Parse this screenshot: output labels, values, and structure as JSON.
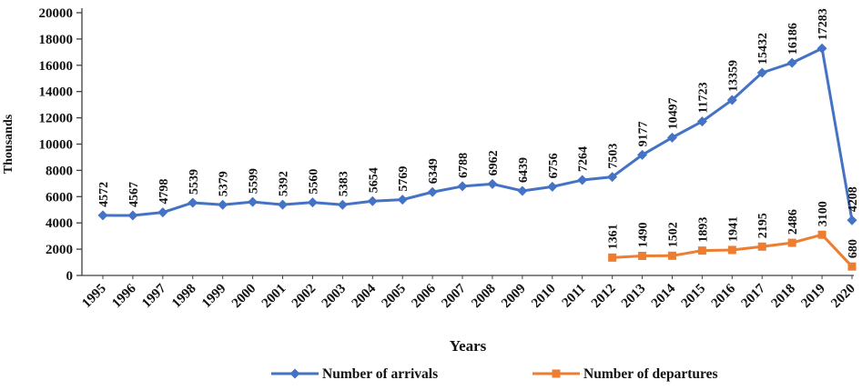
{
  "chart_data": {
    "type": "line",
    "title": "",
    "xlabel": "Years",
    "ylabel": "Thousands",
    "ylim": [
      0,
      20000
    ],
    "ytick_step": 2000,
    "grid": false,
    "legend_position": "bottom",
    "categories": [
      "1995",
      "1996",
      "1997",
      "1998",
      "1999",
      "2000",
      "2001",
      "2002",
      "2003",
      "2004",
      "2005",
      "2006",
      "2007",
      "2008",
      "2009",
      "2010",
      "2011",
      "2012",
      "2013",
      "2014",
      "2015",
      "2016",
      "2017",
      "2018",
      "2019",
      "2020"
    ],
    "series": [
      {
        "name": "Number of arrivals",
        "color": "#4472c4",
        "marker": "diamond",
        "values": [
          4572,
          4567,
          4798,
          5539,
          5379,
          5599,
          5392,
          5560,
          5383,
          5654,
          5769,
          6349,
          6788,
          6962,
          6439,
          6756,
          7264,
          7503,
          9177,
          10497,
          11723,
          13359,
          15432,
          16186,
          17283,
          4208
        ]
      },
      {
        "name": "Number of departures",
        "color": "#ed7d31",
        "marker": "square",
        "values": [
          null,
          null,
          null,
          null,
          null,
          null,
          null,
          null,
          null,
          null,
          null,
          null,
          null,
          null,
          null,
          null,
          null,
          1361,
          1490,
          1502,
          1893,
          1941,
          2195,
          2486,
          3100,
          680
        ]
      }
    ],
    "axis_color": "#404040",
    "label_color": "#111111"
  }
}
